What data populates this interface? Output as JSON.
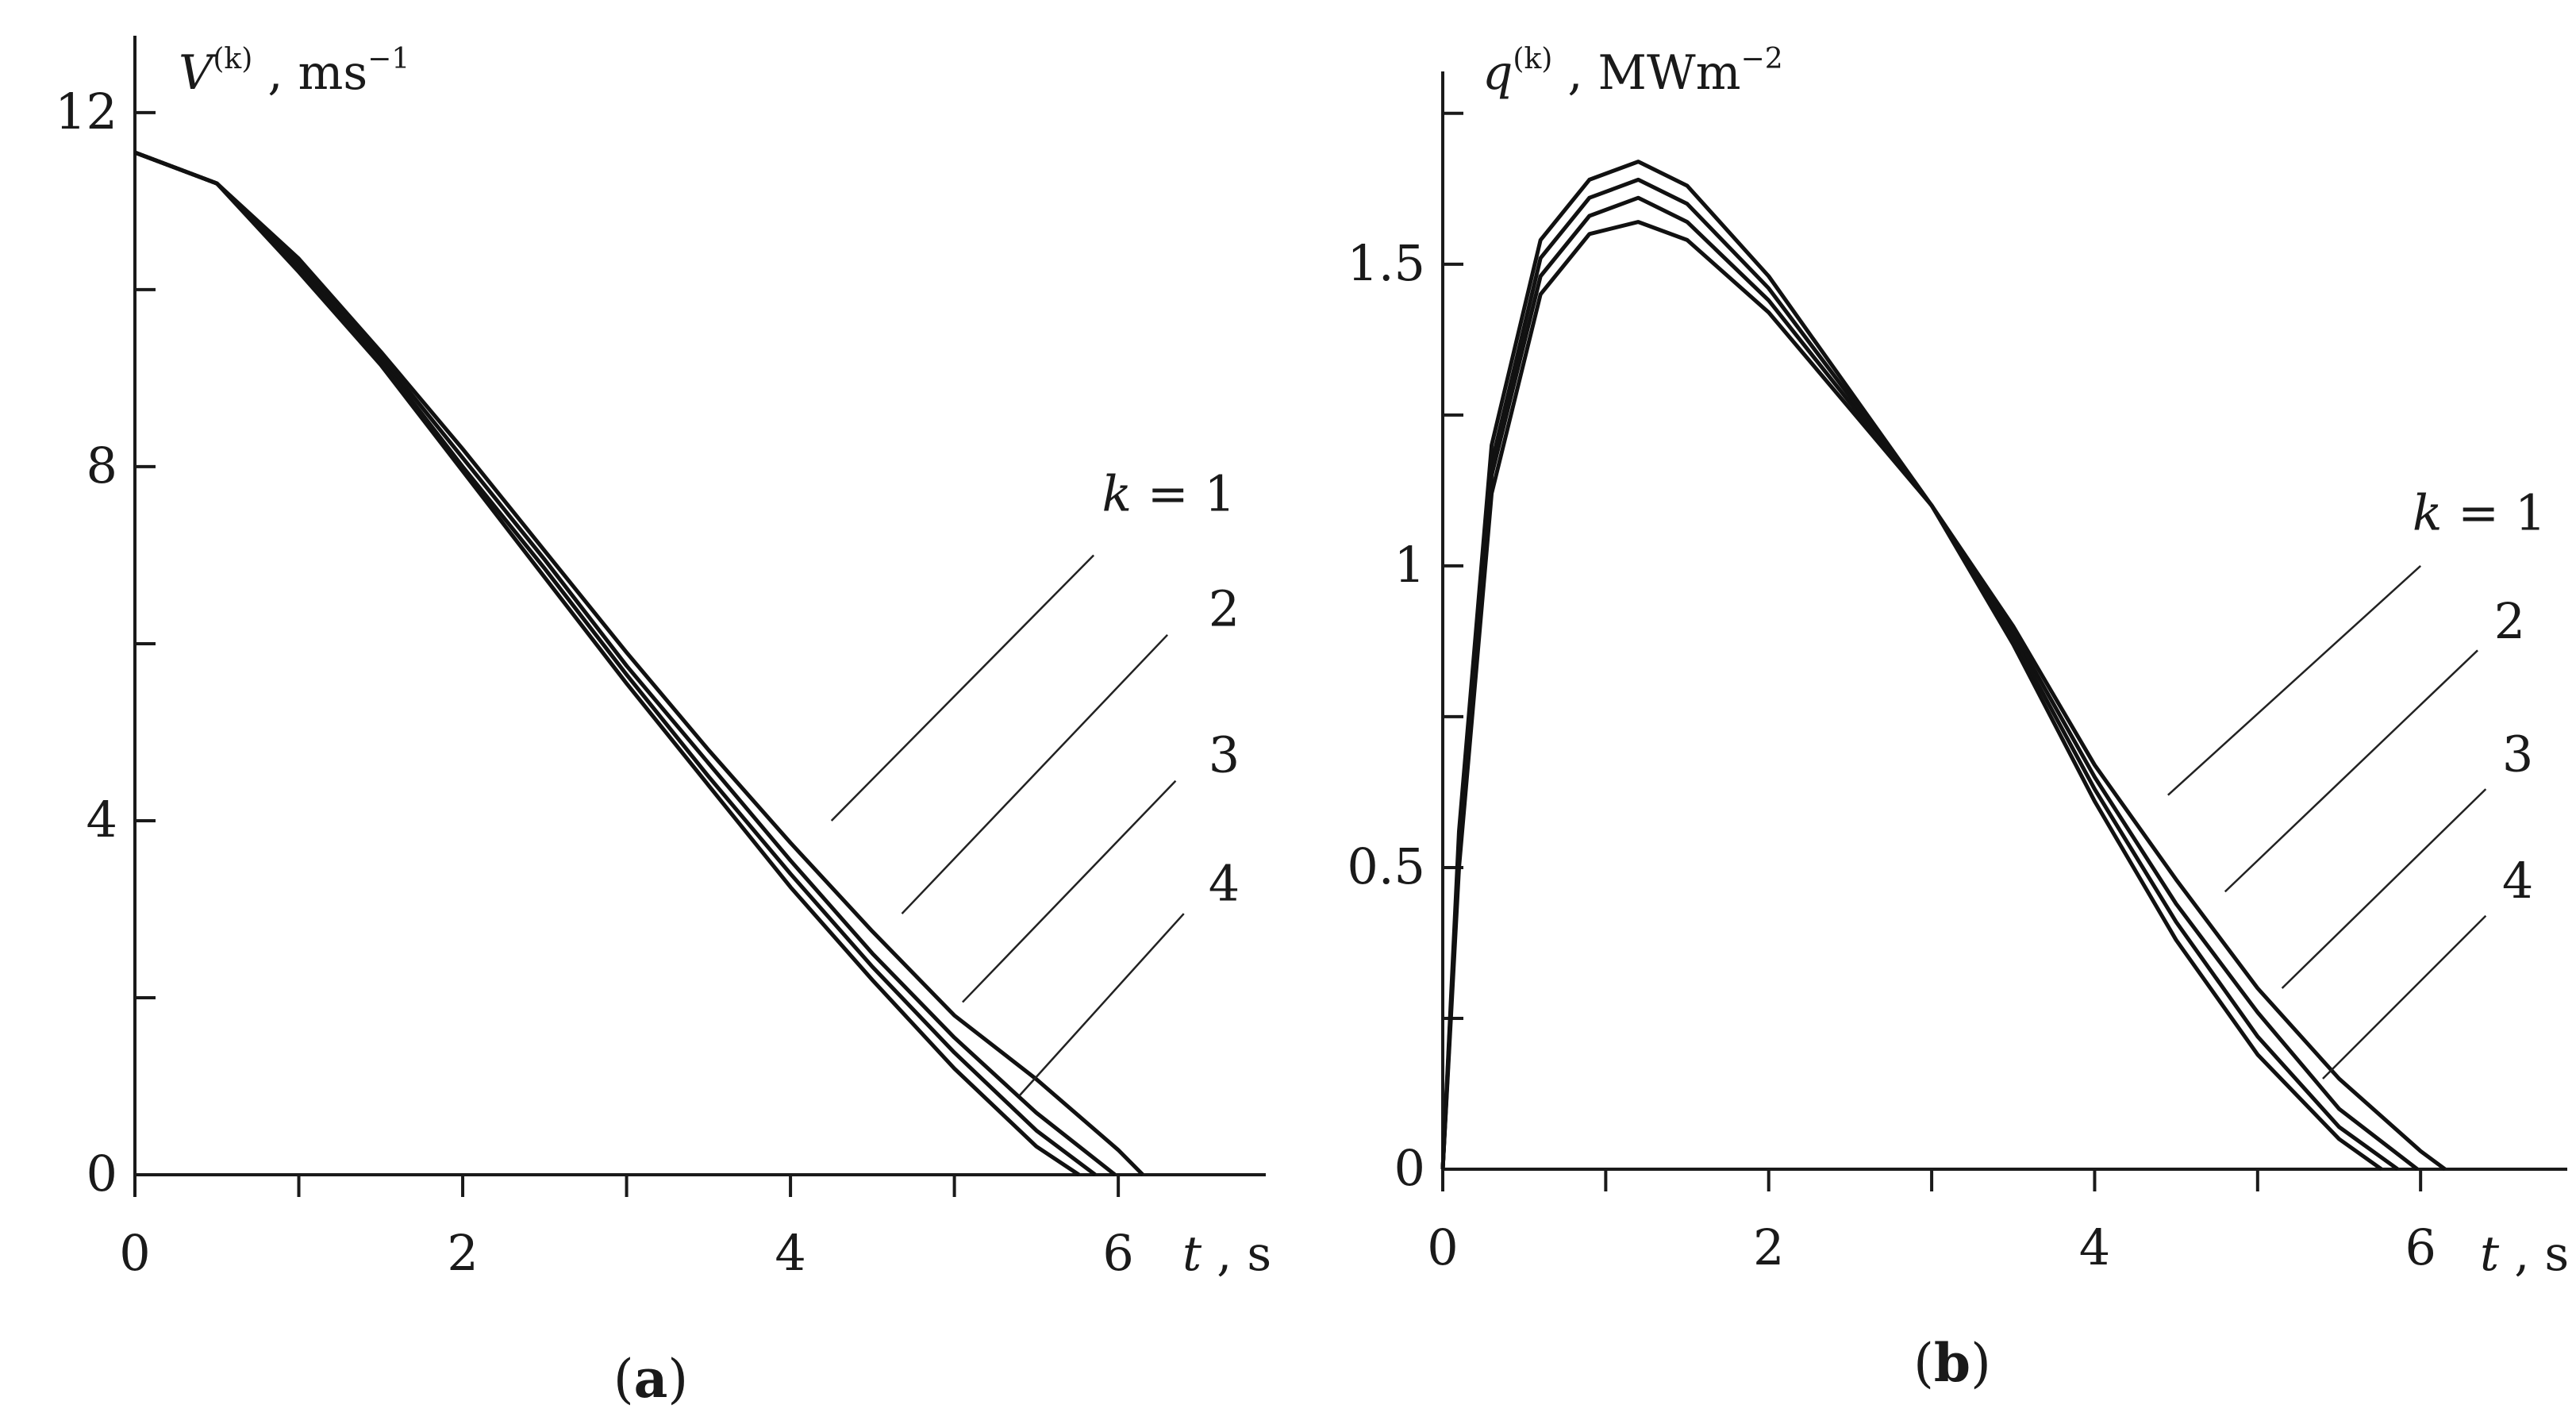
{
  "chart_data": [
    {
      "type": "line",
      "panel": "(a)",
      "panel_letter": "a",
      "x_label": {
        "main": "t",
        "unit": " , s"
      },
      "y_label": {
        "base": "V",
        "sup": "(k)",
        "rest": " , ms",
        "rest_sup": "−1"
      },
      "xlim": [
        0,
        6.9
      ],
      "ylim": [
        0,
        12.6
      ],
      "x_ticks": [
        0,
        1,
        2,
        3,
        4,
        5,
        6
      ],
      "x_tick_labels": [
        "0",
        "",
        "2",
        "",
        "4",
        "",
        "6"
      ],
      "y_ticks": [
        0,
        2,
        4,
        6,
        8,
        10,
        12
      ],
      "y_tick_labels": [
        "0",
        "",
        "4",
        "",
        "8",
        "",
        "12"
      ],
      "grid": false,
      "series": [
        {
          "name": "k = 1",
          "x": [
            0,
            0.5,
            1,
            1.5,
            2,
            2.5,
            3,
            3.5,
            4,
            4.5,
            5,
            5.5,
            6,
            6.15
          ],
          "y": [
            11.55,
            11.2,
            10.35,
            9.3,
            8.2,
            7.05,
            5.9,
            4.8,
            3.75,
            2.75,
            1.8,
            1.08,
            0.28,
            0
          ]
        },
        {
          "name": "2",
          "x": [
            0,
            0.5,
            1,
            1.5,
            2,
            2.5,
            3,
            3.5,
            4,
            4.5,
            5,
            5.5,
            5.98
          ],
          "y": [
            11.55,
            11.2,
            10.3,
            9.25,
            8.1,
            6.95,
            5.75,
            4.65,
            3.55,
            2.5,
            1.55,
            0.7,
            0
          ]
        },
        {
          "name": "3",
          "x": [
            0,
            0.5,
            1,
            1.5,
            2,
            2.5,
            3,
            3.5,
            4,
            4.5,
            5,
            5.5,
            5.86
          ],
          "y": [
            11.55,
            11.2,
            10.25,
            9.2,
            8.0,
            6.85,
            5.65,
            4.5,
            3.4,
            2.35,
            1.38,
            0.5,
            0
          ]
        },
        {
          "name": "4",
          "x": [
            0,
            0.5,
            1,
            1.5,
            2,
            2.5,
            3,
            3.5,
            4,
            4.5,
            5,
            5.5,
            5.76
          ],
          "y": [
            11.55,
            11.2,
            10.2,
            9.15,
            7.95,
            6.75,
            5.55,
            4.4,
            3.25,
            2.2,
            1.2,
            0.32,
            0
          ]
        }
      ],
      "curve_labels": [
        {
          "text": "k = 1",
          "k_italic": true,
          "label_at": [
            5.9,
            7.5
          ],
          "leader_from": [
            5.85,
            7.0
          ],
          "leader_to": [
            4.25,
            4.0
          ]
        },
        {
          "text": "2",
          "label_at": [
            6.55,
            6.2
          ],
          "leader_from": [
            6.3,
            6.1
          ],
          "leader_to": [
            4.68,
            2.95
          ]
        },
        {
          "text": "3",
          "label_at": [
            6.55,
            4.55
          ],
          "leader_from": [
            6.35,
            4.45
          ],
          "leader_to": [
            5.05,
            1.95
          ]
        },
        {
          "text": "4",
          "label_at": [
            6.55,
            3.1
          ],
          "leader_from": [
            6.4,
            2.95
          ],
          "leader_to": [
            5.4,
            0.9
          ]
        }
      ]
    },
    {
      "type": "line",
      "panel": "(b)",
      "panel_letter": "b",
      "x_label": {
        "main": "t",
        "unit": " , s"
      },
      "y_label": {
        "base": "q",
        "sup": "(k)",
        "rest": " , MWm",
        "rest_sup": "−2"
      },
      "xlim": [
        0,
        6.9
      ],
      "ylim": [
        0,
        1.78
      ],
      "x_ticks": [
        0,
        1,
        2,
        3,
        4,
        5,
        6
      ],
      "x_tick_labels": [
        "0",
        "",
        "2",
        "",
        "4",
        "",
        "6"
      ],
      "y_ticks": [
        0,
        0.25,
        0.5,
        0.75,
        1,
        1.25,
        1.5,
        1.75
      ],
      "y_tick_labels": [
        "0",
        "",
        "0.5",
        "",
        "1",
        "",
        "1.5",
        ""
      ],
      "grid": false,
      "series": [
        {
          "name": "k = 1",
          "x": [
            0,
            0.1,
            0.3,
            0.6,
            0.9,
            1.2,
            1.5,
            2,
            2.5,
            3,
            3.5,
            4,
            4.5,
            5,
            5.5,
            6,
            6.15
          ],
          "y": [
            0,
            0.5,
            1.12,
            1.45,
            1.55,
            1.57,
            1.54,
            1.42,
            1.26,
            1.1,
            0.9,
            0.67,
            0.48,
            0.3,
            0.15,
            0.03,
            0
          ]
        },
        {
          "name": "2",
          "x": [
            0,
            0.1,
            0.3,
            0.6,
            0.9,
            1.2,
            1.5,
            2,
            2.5,
            3,
            3.5,
            4,
            4.5,
            5,
            5.5,
            5.98
          ],
          "y": [
            0,
            0.52,
            1.15,
            1.48,
            1.58,
            1.61,
            1.57,
            1.44,
            1.27,
            1.1,
            0.89,
            0.65,
            0.44,
            0.26,
            0.1,
            0
          ]
        },
        {
          "name": "3",
          "x": [
            0,
            0.1,
            0.3,
            0.6,
            0.9,
            1.2,
            1.5,
            2,
            2.5,
            3,
            3.5,
            4,
            4.5,
            5,
            5.5,
            5.86
          ],
          "y": [
            0,
            0.54,
            1.17,
            1.51,
            1.61,
            1.64,
            1.6,
            1.46,
            1.28,
            1.1,
            0.88,
            0.63,
            0.41,
            0.22,
            0.07,
            0
          ]
        },
        {
          "name": "4",
          "x": [
            0,
            0.1,
            0.3,
            0.6,
            0.9,
            1.2,
            1.5,
            2,
            2.5,
            3,
            3.5,
            4,
            4.5,
            5,
            5.5,
            5.76
          ],
          "y": [
            0,
            0.56,
            1.2,
            1.54,
            1.64,
            1.67,
            1.63,
            1.48,
            1.29,
            1.1,
            0.87,
            0.61,
            0.38,
            0.19,
            0.05,
            0
          ]
        }
      ],
      "curve_labels": [
        {
          "text": "k = 1",
          "k_italic": true,
          "label_at": [
            5.95,
            1.06
          ],
          "leader_from": [
            6.0,
            1.0
          ],
          "leader_to": [
            4.45,
            0.62
          ]
        },
        {
          "text": "2",
          "label_at": [
            6.45,
            0.88
          ],
          "leader_from": [
            6.35,
            0.86
          ],
          "leader_to": [
            4.8,
            0.46
          ]
        },
        {
          "text": "3",
          "label_at": [
            6.5,
            0.66
          ],
          "leader_from": [
            6.4,
            0.63
          ],
          "leader_to": [
            5.15,
            0.3
          ]
        },
        {
          "text": "4",
          "label_at": [
            6.5,
            0.45
          ],
          "leader_from": [
            6.4,
            0.42
          ],
          "leader_to": [
            5.4,
            0.15
          ]
        }
      ]
    }
  ]
}
